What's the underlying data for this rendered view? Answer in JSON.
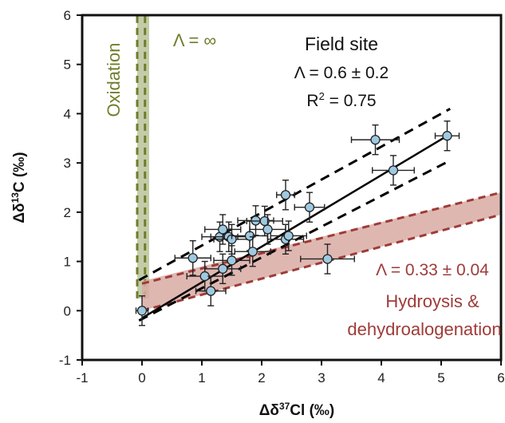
{
  "chart_data": {
    "type": "scatter",
    "xlabel_parts": [
      "Δδ",
      "37",
      "Cl  (‰)"
    ],
    "ylabel_parts": [
      "Δδ",
      "13",
      "C  (‰)"
    ],
    "xlim": [
      -1,
      6
    ],
    "ylim": [
      -1,
      6
    ],
    "x_ticks": [
      "-1",
      "0",
      "1",
      "2",
      "3",
      "4",
      "5",
      "6"
    ],
    "y_ticks": [
      "-1",
      "0",
      "1",
      "2",
      "3",
      "4",
      "5",
      "6"
    ],
    "grid": false,
    "series": [
      {
        "points": [
          {
            "x": 0.0,
            "y": 0.0,
            "xerr": 0.1,
            "yerr": 0.3
          },
          {
            "x": 0.85,
            "y": 1.07,
            "xerr": 0.3,
            "yerr": 0.35
          },
          {
            "x": 1.05,
            "y": 0.7,
            "xerr": 0.3,
            "yerr": 0.3
          },
          {
            "x": 1.15,
            "y": 0.4,
            "xerr": 0.25,
            "yerr": 0.3
          },
          {
            "x": 1.35,
            "y": 0.85,
            "xerr": 0.3,
            "yerr": 0.3
          },
          {
            "x": 1.5,
            "y": 1.02,
            "xerr": 0.3,
            "yerr": 0.3
          },
          {
            "x": 1.3,
            "y": 1.5,
            "xerr": 0.3,
            "yerr": 0.3
          },
          {
            "x": 1.35,
            "y": 1.65,
            "xerr": 0.3,
            "yerr": 0.3
          },
          {
            "x": 1.45,
            "y": 1.5,
            "xerr": 0.3,
            "yerr": 0.3
          },
          {
            "x": 1.5,
            "y": 1.45,
            "xerr": 0.3,
            "yerr": 0.3
          },
          {
            "x": 1.8,
            "y": 1.52,
            "xerr": 0.3,
            "yerr": 0.3
          },
          {
            "x": 1.85,
            "y": 1.2,
            "xerr": 0.3,
            "yerr": 0.3
          },
          {
            "x": 1.9,
            "y": 1.83,
            "xerr": 0.3,
            "yerr": 0.3
          },
          {
            "x": 2.05,
            "y": 1.82,
            "xerr": 0.3,
            "yerr": 0.3
          },
          {
            "x": 2.1,
            "y": 1.65,
            "xerr": 0.3,
            "yerr": 0.3
          },
          {
            "x": 2.4,
            "y": 1.45,
            "xerr": 0.3,
            "yerr": 0.3
          },
          {
            "x": 2.45,
            "y": 1.52,
            "xerr": 0.3,
            "yerr": 0.3
          },
          {
            "x": 2.4,
            "y": 2.35,
            "xerr": 0.15,
            "yerr": 0.3
          },
          {
            "x": 2.8,
            "y": 2.1,
            "xerr": 0.25,
            "yerr": 0.3
          },
          {
            "x": 3.1,
            "y": 1.05,
            "xerr": 0.45,
            "yerr": 0.3
          },
          {
            "x": 3.9,
            "y": 3.47,
            "xerr": 0.4,
            "yerr": 0.3
          },
          {
            "x": 4.2,
            "y": 2.85,
            "xerr": 0.35,
            "yerr": 0.3
          },
          {
            "x": 5.1,
            "y": 3.55,
            "xerr": 0.2,
            "yerr": 0.3
          }
        ]
      }
    ],
    "lines": [
      {
        "style": "solid",
        "color": "#000000",
        "x": [
          0.0,
          5.1
        ],
        "y": [
          -0.15,
          3.55
        ]
      },
      {
        "style": "dashed",
        "color": "#000000",
        "x": [
          -0.05,
          5.15
        ],
        "y": [
          0.62,
          4.1
        ]
      },
      {
        "style": "dashed",
        "color": "#000000",
        "x": [
          -0.05,
          5.15
        ],
        "y": [
          -0.2,
          3.05
        ]
      }
    ],
    "bands": [
      {
        "name": "oxidation",
        "color": "#6f7d2a",
        "fill": "#b9c39a",
        "polygon": [
          [
            -0.08,
            0.25
          ],
          [
            0.12,
            0.25
          ],
          [
            0.12,
            6.0
          ],
          [
            -0.08,
            6.0
          ]
        ],
        "upper_edge": [
          [
            0.05,
            0.25
          ],
          [
            0.05,
            6.0
          ]
        ],
        "lower_edge": [
          [
            -0.08,
            0.25
          ],
          [
            -0.08,
            6.0
          ]
        ]
      },
      {
        "name": "hydrolysis",
        "color": "#9e3b38",
        "fill": "#d9aaa3",
        "polygon": [
          [
            0.0,
            0.0
          ],
          [
            6.0,
            1.95
          ],
          [
            6.0,
            2.4
          ],
          [
            0.0,
            0.6
          ]
        ],
        "upper_edge": [
          [
            0.0,
            0.55
          ],
          [
            6.0,
            2.4
          ]
        ],
        "lower_edge": [
          [
            0.0,
            0.0
          ],
          [
            6.0,
            1.95
          ]
        ]
      }
    ],
    "annotations": {
      "oxidation_label": "Oxidation",
      "lambda_inf": "Λ = ∞",
      "field_site": "Field site",
      "field_lambda": "Λ = 0.6 ± 0.2",
      "field_r2_prefix": "R",
      "field_r2_sup": "2",
      "field_r2_suffix": " = 0.75",
      "hydro_lambda": "Λ = 0.33 ± 0.04",
      "hydro_line1": "Hydroysis &",
      "hydro_line2": "dehydroalogenation"
    },
    "colors": {
      "marker_fill": "#9fc9e1",
      "marker_stroke": "#222222",
      "oxidation_text": "#6f7d2a",
      "hydro_text": "#9e3b38"
    }
  }
}
